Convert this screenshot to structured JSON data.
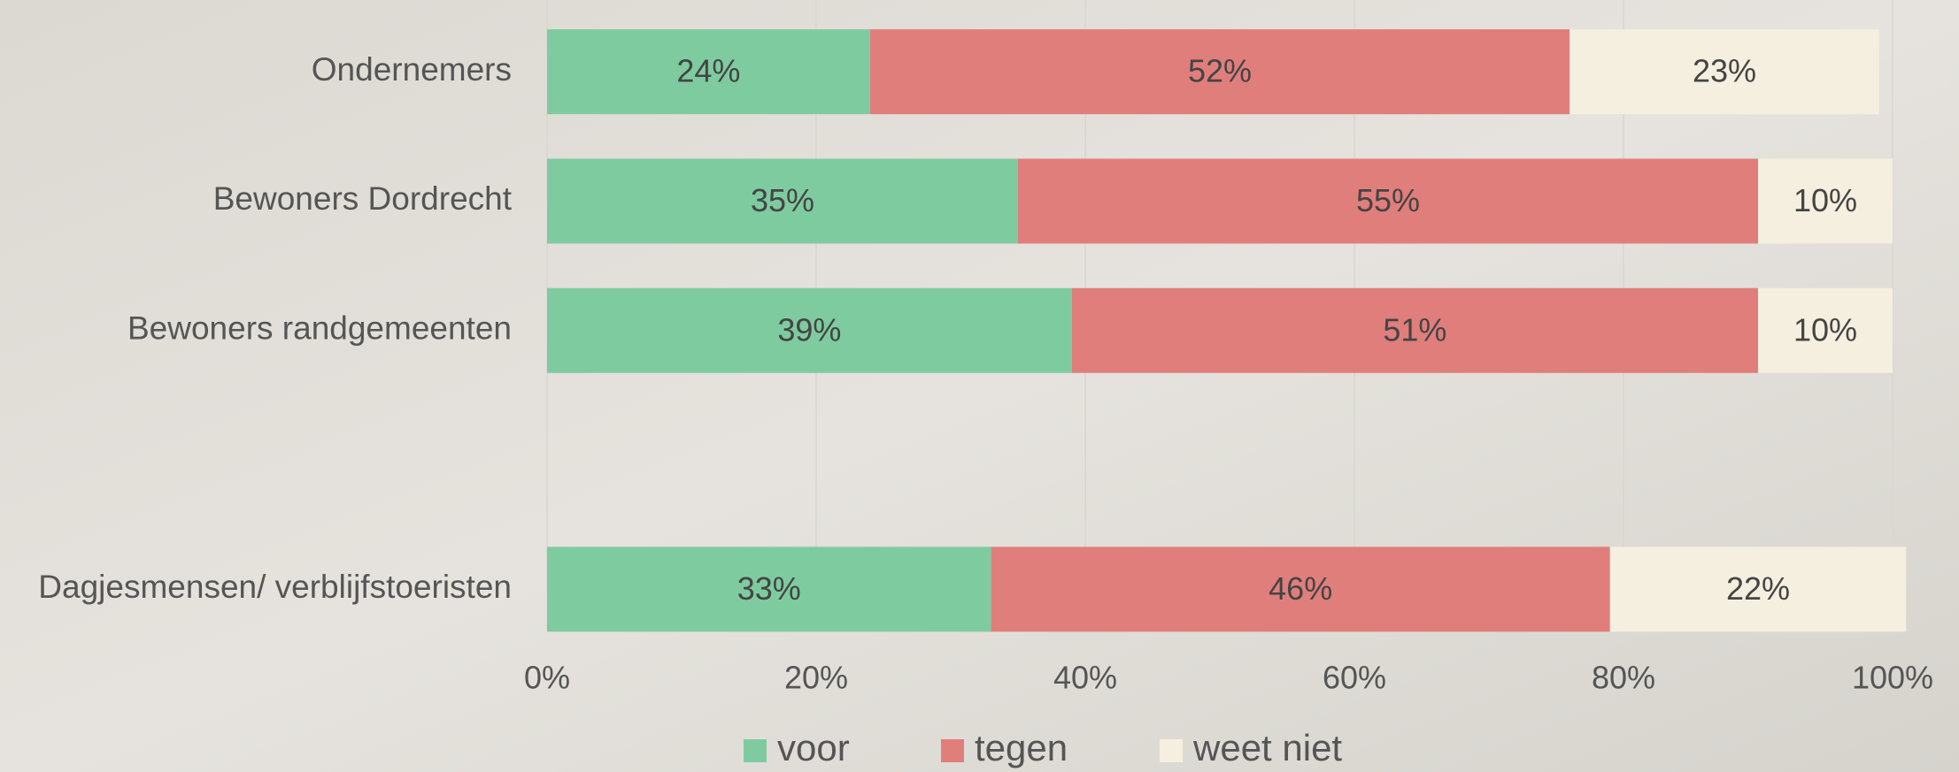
{
  "chart_data": {
    "type": "stacked-bar-horizontal",
    "categories": [
      "Ondernemers",
      "Bewoners Dordrecht",
      "Bewoners randgemeenten",
      null,
      "Dagjesmensen/ verblijfstoeristen"
    ],
    "series": [
      {
        "name": "voor",
        "color": "#7fcba0",
        "values": [
          24,
          35,
          39,
          null,
          33
        ],
        "value_labels": [
          "24%",
          "35%",
          "39%",
          null,
          "33%"
        ]
      },
      {
        "name": "tegen",
        "color": "#e07e7c",
        "values": [
          52,
          55,
          51,
          null,
          46
        ],
        "value_labels": [
          "52%",
          "55%",
          "51%",
          null,
          "46%"
        ]
      },
      {
        "name": "weet niet",
        "color": "#f5efdf",
        "values": [
          23,
          10,
          10,
          null,
          22
        ],
        "value_labels": [
          "23%",
          "10%",
          "10%",
          null,
          "22%"
        ]
      }
    ],
    "xlim": [
      0,
      100
    ],
    "xticks": [
      {
        "value": 0,
        "label": "0%"
      },
      {
        "value": 20,
        "label": "20%"
      },
      {
        "value": 40,
        "label": "40%"
      },
      {
        "value": 60,
        "label": "60%"
      },
      {
        "value": 80,
        "label": "80%"
      },
      {
        "value": 100,
        "label": "100%"
      }
    ],
    "grid": true,
    "legend": "bottom"
  }
}
